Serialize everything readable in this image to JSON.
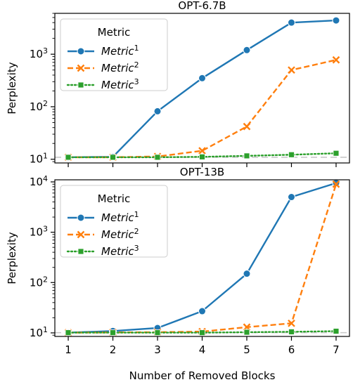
{
  "figure": {
    "xlabel": "Number of Removed Blocks"
  },
  "chart_data": [
    {
      "type": "line",
      "title": "OPT-6.7B",
      "ylabel": "Perplexity",
      "yscale": "log",
      "ylim": [
        8.5,
        6000
      ],
      "yticks": [
        {
          "value": 10,
          "base": "10",
          "exp": "1"
        },
        {
          "value": 100,
          "base": "10",
          "exp": "2"
        },
        {
          "value": 1000,
          "base": "10",
          "exp": "3"
        }
      ],
      "x": [
        1,
        2,
        3,
        4,
        5,
        6,
        7
      ],
      "xlim": [
        0.7,
        7.3
      ],
      "reference_line": 10.9,
      "legend": {
        "title": "Metric",
        "placement": "top-left"
      },
      "series": [
        {
          "label_base": "Metric",
          "label_sup": "1",
          "color": "#1f77b4",
          "dash": "solid",
          "marker": "circle",
          "values": [
            10.9,
            11.1,
            82,
            350,
            1200,
            4000,
            4400
          ]
        },
        {
          "label_base": "Metric",
          "label_sup": "2",
          "color": "#ff7f0e",
          "dash": "dashed",
          "marker": "x",
          "values": [
            10.9,
            10.9,
            11.3,
            14.5,
            42,
            500,
            780
          ]
        },
        {
          "label_base": "Metric",
          "label_sup": "3",
          "color": "#2ca02c",
          "dash": "dotted",
          "marker": "square",
          "values": [
            10.9,
            10.9,
            10.9,
            11.1,
            11.6,
            12.2,
            13
          ]
        }
      ]
    },
    {
      "type": "line",
      "title": "OPT-13B",
      "ylabel": "Perplexity",
      "yscale": "log",
      "ylim": [
        8.5,
        11000
      ],
      "yticks": [
        {
          "value": 10,
          "base": "10",
          "exp": "1"
        },
        {
          "value": 100,
          "base": "10",
          "exp": "2"
        },
        {
          "value": 1000,
          "base": "10",
          "exp": "3"
        },
        {
          "value": 10000,
          "base": "10",
          "exp": "4"
        }
      ],
      "x": [
        1,
        2,
        3,
        4,
        5,
        6,
        7
      ],
      "xlim": [
        0.7,
        7.3
      ],
      "reference_line": 10.1,
      "legend": {
        "title": "Metric",
        "placement": "top-left"
      },
      "series": [
        {
          "label_base": "Metric",
          "label_sup": "1",
          "color": "#1f77b4",
          "dash": "solid",
          "marker": "circle",
          "values": [
            10.1,
            10.9,
            12.5,
            27,
            150,
            5000,
            9500
          ]
        },
        {
          "label_base": "Metric",
          "label_sup": "2",
          "color": "#ff7f0e",
          "dash": "dashed",
          "marker": "x",
          "values": [
            10.1,
            10.2,
            10.3,
            10.6,
            13,
            15.5,
            9000
          ]
        },
        {
          "label_base": "Metric",
          "label_sup": "3",
          "color": "#2ca02c",
          "dash": "dotted",
          "marker": "square",
          "values": [
            10.1,
            10.1,
            10.1,
            10.1,
            10.3,
            10.5,
            10.8
          ]
        }
      ]
    }
  ]
}
